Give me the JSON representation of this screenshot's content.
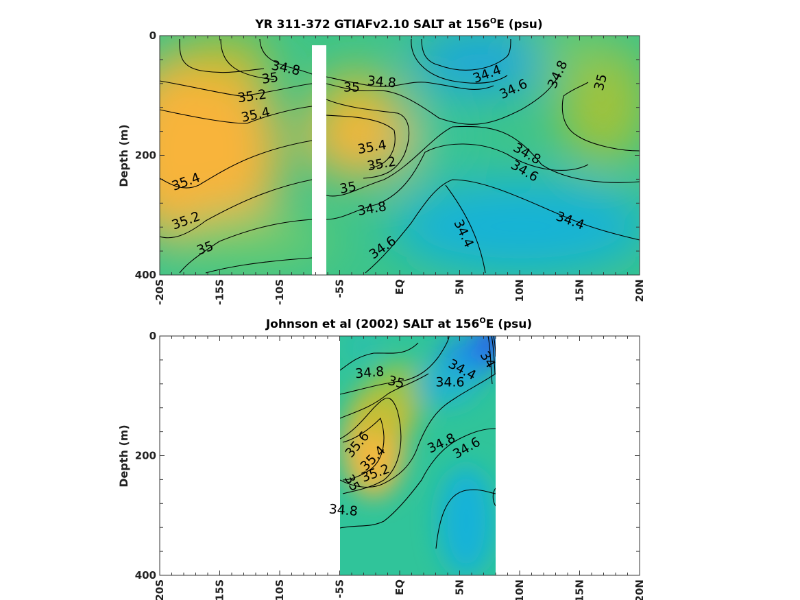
{
  "chart_data": [
    {
      "type": "heatmap",
      "title": "YR 311-372 GTIAFv2.10 SALT at 156",
      "title_sup": "O",
      "title_end": "E (psu)",
      "ylabel": "Depth (m)",
      "xlabel": "",
      "xlim": [
        -20,
        20
      ],
      "ylim": [
        0,
        400
      ],
      "y_reversed": true,
      "xticks": [
        "-20S",
        "-15S",
        "-10S",
        "-5S",
        "EQ",
        "5N",
        "10N",
        "15N",
        "20N"
      ],
      "yticks": [
        "0",
        "200",
        "400"
      ],
      "colormap": "parula",
      "data_gap": {
        "x": [
          -7.2,
          -6.0
        ],
        "depth": [
          15,
          400
        ]
      },
      "contour_labels": [
        {
          "text": "34.8",
          "x": -9.5,
          "depth": 55,
          "angle": 12
        },
        {
          "text": "35",
          "x": -10.8,
          "depth": 72,
          "angle": -8
        },
        {
          "text": "35.2",
          "x": -12.3,
          "depth": 102,
          "angle": -8
        },
        {
          "text": "35.4",
          "x": -12.0,
          "depth": 133,
          "angle": -12
        },
        {
          "text": "35.4",
          "x": -17.8,
          "depth": 245,
          "angle": -20
        },
        {
          "text": "35.2",
          "x": -17.8,
          "depth": 310,
          "angle": -20
        },
        {
          "text": "35",
          "x": -16.2,
          "depth": 356,
          "angle": -20
        },
        {
          "text": "35",
          "x": -4.0,
          "depth": 87,
          "angle": 0
        },
        {
          "text": "34.8",
          "x": -1.5,
          "depth": 78,
          "angle": 5
        },
        {
          "text": "35.4",
          "x": -2.3,
          "depth": 187,
          "angle": -10
        },
        {
          "text": "35.2",
          "x": -1.5,
          "depth": 215,
          "angle": -10
        },
        {
          "text": "35",
          "x": -4.3,
          "depth": 255,
          "angle": -10
        },
        {
          "text": "34.8",
          "x": -2.3,
          "depth": 290,
          "angle": -10
        },
        {
          "text": "34.6",
          "x": -1.4,
          "depth": 355,
          "angle": -35
        },
        {
          "text": "34.4",
          "x": 7.3,
          "depth": 65,
          "angle": -20
        },
        {
          "text": "34.6",
          "x": 9.5,
          "depth": 90,
          "angle": -25
        },
        {
          "text": "34.8",
          "x": 13.2,
          "depth": 65,
          "angle": -65
        },
        {
          "text": "35",
          "x": 16.8,
          "depth": 78,
          "angle": -75
        },
        {
          "text": "34.8",
          "x": 10.6,
          "depth": 198,
          "angle": 30
        },
        {
          "text": "34.6",
          "x": 10.4,
          "depth": 227,
          "angle": 30
        },
        {
          "text": "34.4",
          "x": 14.2,
          "depth": 310,
          "angle": 20
        },
        {
          "text": "34.4",
          "x": 5.3,
          "depth": 331,
          "angle": 65
        }
      ]
    },
    {
      "type": "heatmap",
      "title": "Johnson et al (2002) SALT at 156",
      "title_sup": "O",
      "title_end": "E (psu)",
      "ylabel": "Depth (m)",
      "xlabel": "",
      "xlim": [
        -20,
        20
      ],
      "ylim": [
        0,
        400
      ],
      "y_reversed": true,
      "xticks": [
        "-20S",
        "-15S",
        "-10S",
        "-5S",
        "EQ",
        "5N",
        "10N",
        "15N",
        "20N"
      ],
      "yticks": [
        "0",
        "200",
        "400"
      ],
      "colormap": "parula",
      "data_extent_x": [
        -5,
        8
      ],
      "contour_labels": [
        {
          "text": "34.8",
          "x": -2.5,
          "depth": 62,
          "angle": -5
        },
        {
          "text": "35",
          "x": -0.3,
          "depth": 78,
          "angle": 15
        },
        {
          "text": "34.4",
          "x": 5.2,
          "depth": 57,
          "angle": 28
        },
        {
          "text": "34.6",
          "x": 4.2,
          "depth": 78,
          "angle": 0
        },
        {
          "text": "34",
          "x": 7.3,
          "depth": 40,
          "angle": 60
        },
        {
          "text": "35.6",
          "x": -3.5,
          "depth": 182,
          "angle": -50
        },
        {
          "text": "35.4",
          "x": -2.2,
          "depth": 205,
          "angle": -45
        },
        {
          "text": "35.2",
          "x": -2.0,
          "depth": 230,
          "angle": -20
        },
        {
          "text": "35",
          "x": -4.0,
          "depth": 246,
          "angle": 60
        },
        {
          "text": "34.8",
          "x": -4.7,
          "depth": 292,
          "angle": 5
        },
        {
          "text": "34.8",
          "x": 3.5,
          "depth": 180,
          "angle": -25
        },
        {
          "text": "34.6",
          "x": 5.6,
          "depth": 188,
          "angle": -30
        }
      ]
    }
  ]
}
